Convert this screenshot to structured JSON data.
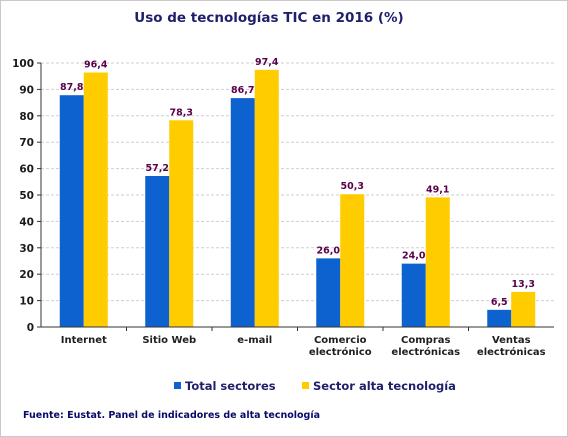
{
  "colors": {
    "series1": "#0d62d0",
    "series2": "#ffcc00",
    "grid": "#cfcfcf",
    "label": "#5a004a",
    "title": "#1f1f6b"
  },
  "chart_data": {
    "type": "bar",
    "title": "Uso de tecnologías TIC en 2016 (%)",
    "categories": [
      [
        "Internet"
      ],
      [
        "Sitio Web"
      ],
      [
        "e-mail"
      ],
      [
        "Comercio",
        "electrónico"
      ],
      [
        "Compras",
        "electrónicas"
      ],
      [
        "Ventas",
        "electrónicas"
      ]
    ],
    "series": [
      {
        "name": "Total sectores",
        "values": [
          87.8,
          57.2,
          86.7,
          26.0,
          24.0,
          6.5
        ],
        "labels": [
          "87,8",
          "57,2",
          "86,7",
          "26,0",
          "24,0",
          "6,5"
        ]
      },
      {
        "name": "Sector alta tecnología",
        "values": [
          96.4,
          78.3,
          97.4,
          50.3,
          49.1,
          13.3
        ],
        "labels": [
          "96,4",
          "78,3",
          "97,4",
          "50,3",
          "49,1",
          "13,3"
        ]
      }
    ],
    "ylim": [
      0,
      100
    ],
    "yticks": [
      0,
      10,
      20,
      30,
      40,
      50,
      60,
      70,
      80,
      90,
      100
    ],
    "grid": true,
    "legend": "bottom",
    "source": "Fuente: Eustat. Panel de indicadores de alta tecnología"
  }
}
